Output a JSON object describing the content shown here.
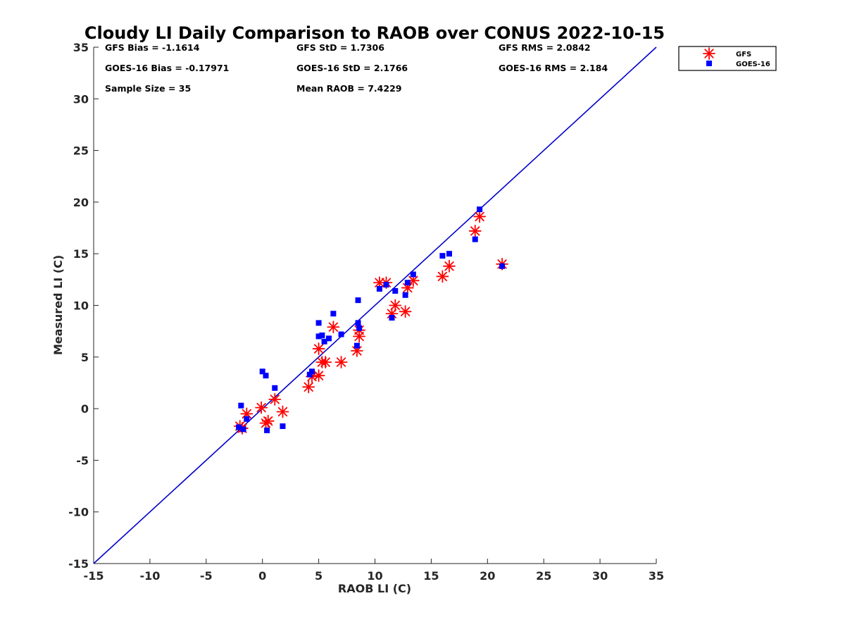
{
  "chart_data": {
    "type": "scatter",
    "title": "Cloudy LI Daily Comparison to RAOB over CONUS 2022-10-15",
    "xlabel": "RAOB LI (C)",
    "ylabel": "Measured LI (C)",
    "xlim": [
      -15,
      35
    ],
    "ylim": [
      -15,
      35
    ],
    "xticks": [
      -15,
      -10,
      -5,
      0,
      5,
      10,
      15,
      20,
      25,
      30,
      35
    ],
    "yticks": [
      -15,
      -10,
      -5,
      0,
      5,
      10,
      15,
      20,
      25,
      30,
      35
    ],
    "grid": false,
    "legend_position": "outside-top-right",
    "reference_line": {
      "from": [
        -15,
        -15
      ],
      "to": [
        35,
        35
      ],
      "color": "#0000cc"
    },
    "stats": [
      {
        "text": "GFS Bias = -1.1614",
        "col": 0,
        "row": 0
      },
      {
        "text": "GFS StD = 1.7306",
        "col": 1,
        "row": 0
      },
      {
        "text": "GFS RMS = 2.0842",
        "col": 2,
        "row": 0
      },
      {
        "text": "GOES-16 Bias = -0.17971",
        "col": 0,
        "row": 1
      },
      {
        "text": "GOES-16 StD = 2.1766",
        "col": 1,
        "row": 1
      },
      {
        "text": "GOES-16 RMS = 2.184",
        "col": 2,
        "row": 1
      },
      {
        "text": "Sample Size = 35",
        "col": 0,
        "row": 2
      },
      {
        "text": "Mean RAOB = 7.4229",
        "col": 1,
        "row": 2
      }
    ],
    "series": [
      {
        "name": "GFS",
        "marker": "asterisk",
        "color": "#ff0000",
        "points": [
          [
            -2.0,
            -1.7
          ],
          [
            -1.8,
            -1.9
          ],
          [
            -1.4,
            -0.5
          ],
          [
            -0.1,
            0.1
          ],
          [
            0.3,
            -1.4
          ],
          [
            0.5,
            -1.2
          ],
          [
            1.1,
            0.9
          ],
          [
            1.8,
            -0.3
          ],
          [
            4.1,
            2.1
          ],
          [
            4.4,
            3.1
          ],
          [
            5.0,
            3.2
          ],
          [
            5.0,
            5.8
          ],
          [
            5.3,
            4.5
          ],
          [
            5.6,
            4.5
          ],
          [
            6.3,
            7.9
          ],
          [
            7.0,
            4.5
          ],
          [
            8.4,
            5.6
          ],
          [
            8.6,
            7.0
          ],
          [
            8.6,
            7.6
          ],
          [
            10.4,
            12.2
          ],
          [
            11.0,
            12.2
          ],
          [
            11.5,
            9.2
          ],
          [
            11.8,
            10.0
          ],
          [
            12.7,
            9.4
          ],
          [
            12.9,
            11.7
          ],
          [
            13.4,
            12.4
          ],
          [
            16.0,
            12.8
          ],
          [
            16.6,
            13.8
          ],
          [
            18.9,
            17.2
          ],
          [
            19.3,
            18.6
          ],
          [
            21.3,
            14.0
          ]
        ]
      },
      {
        "name": "GOES-16",
        "marker": "square",
        "color": "#0000ff",
        "points": [
          [
            -2.1,
            -1.8
          ],
          [
            -1.9,
            0.3
          ],
          [
            -1.7,
            -2.0
          ],
          [
            -1.4,
            -1.0
          ],
          [
            0.0,
            3.6
          ],
          [
            0.3,
            3.2
          ],
          [
            0.4,
            -2.1
          ],
          [
            1.1,
            2.0
          ],
          [
            1.8,
            -1.7
          ],
          [
            4.2,
            3.3
          ],
          [
            4.4,
            3.6
          ],
          [
            5.0,
            8.3
          ],
          [
            5.0,
            7.0
          ],
          [
            5.3,
            7.1
          ],
          [
            5.5,
            6.5
          ],
          [
            5.9,
            6.8
          ],
          [
            6.3,
            9.2
          ],
          [
            7.0,
            7.2
          ],
          [
            8.4,
            6.1
          ],
          [
            8.5,
            8.3
          ],
          [
            8.5,
            10.5
          ],
          [
            8.6,
            7.8
          ],
          [
            10.4,
            11.6
          ],
          [
            11.0,
            12.0
          ],
          [
            11.5,
            8.8
          ],
          [
            11.8,
            11.4
          ],
          [
            12.7,
            11.0
          ],
          [
            12.9,
            12.2
          ],
          [
            13.4,
            13.0
          ],
          [
            16.0,
            14.8
          ],
          [
            16.6,
            15.0
          ],
          [
            18.9,
            16.4
          ],
          [
            19.3,
            19.3
          ],
          [
            21.3,
            13.8
          ]
        ]
      }
    ]
  }
}
